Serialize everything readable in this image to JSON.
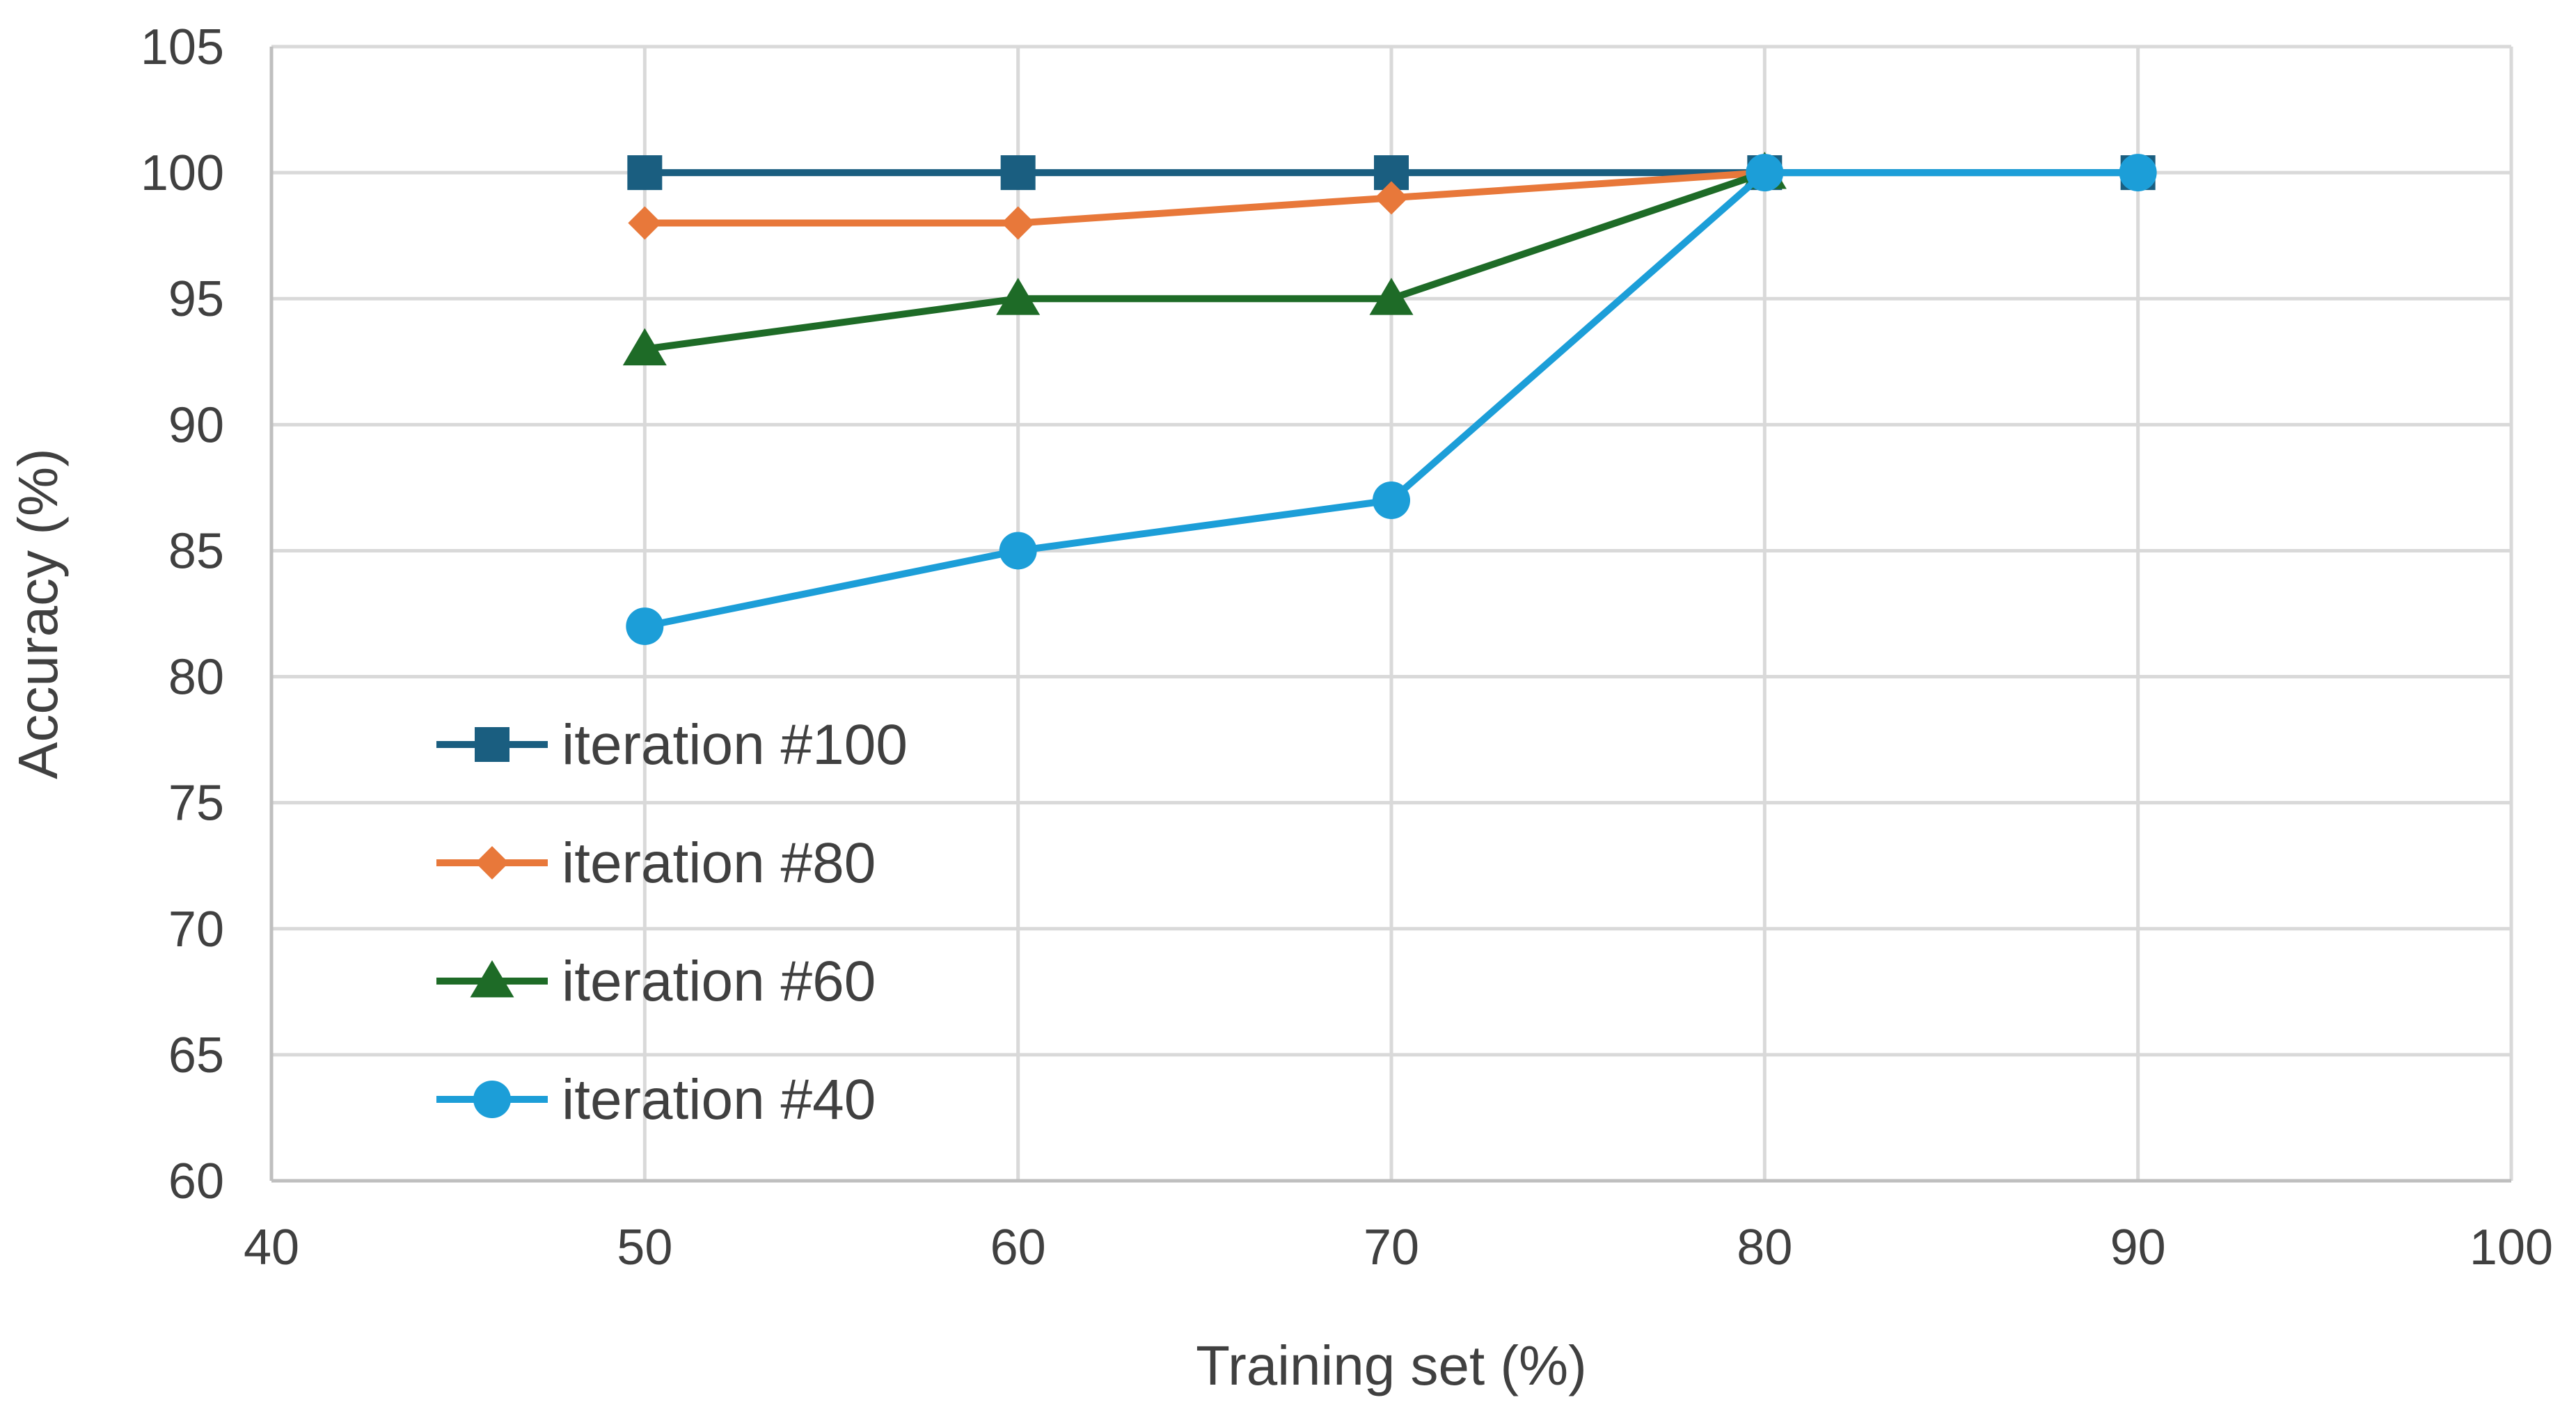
{
  "chart_data": {
    "type": "line",
    "title": "",
    "xlabel": "Training set (%)",
    "ylabel": "Accuracy (%)",
    "xlim": [
      40,
      100
    ],
    "ylim": [
      60,
      105
    ],
    "xticks": [
      40,
      50,
      60,
      70,
      80,
      90,
      100
    ],
    "yticks": [
      60,
      65,
      70,
      75,
      80,
      85,
      90,
      95,
      100,
      105
    ],
    "grid": true,
    "legend_position": "bottom-left",
    "series": [
      {
        "name": "iteration #100",
        "color": "#1a5e80",
        "marker": "square",
        "x": [
          50,
          60,
          70,
          80,
          90
        ],
        "y": [
          100,
          100,
          100,
          100,
          100
        ]
      },
      {
        "name": "iteration #80",
        "color": "#e8783a",
        "marker": "diamond",
        "x": [
          50,
          60,
          70,
          80
        ],
        "y": [
          98,
          98,
          99,
          100
        ]
      },
      {
        "name": "iteration #60",
        "color": "#1e6b27",
        "marker": "triangle",
        "x": [
          50,
          60,
          70,
          80
        ],
        "y": [
          93,
          95,
          95,
          100
        ]
      },
      {
        "name": "iteration #40",
        "color": "#1c9ed8",
        "marker": "circle",
        "x": [
          50,
          60,
          70,
          80,
          90
        ],
        "y": [
          82,
          85,
          87,
          100,
          100
        ]
      }
    ]
  }
}
